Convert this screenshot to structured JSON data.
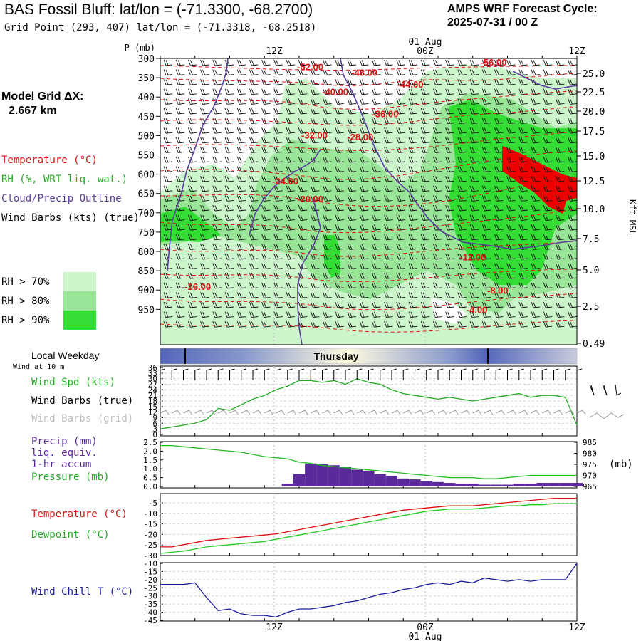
{
  "header": {
    "title": "BAS Fossil Bluff:  lat/lon = (-71.3300, -68.2700)",
    "subtitle": "Grid Point (293, 407) lat/lon = (-71.3318, -68.2518)",
    "cycle_label": "AMPS WRF Forecast Cycle:",
    "cycle_value": "2025-07-31 / 00  Z"
  },
  "model_grid": {
    "label": "Model Grid ΔX:",
    "value": "2.667 km"
  },
  "legend": {
    "temperature": "Temperature (°C)",
    "rh": "RH (%, WRT liq. wat.)",
    "cloud": "Cloud/Precip Outline",
    "wind": "Wind Barbs (kts) (true)",
    "rh70": "RH > 70%",
    "rh80": "RH > 80%",
    "rh90": "RH > 90%"
  },
  "colors": {
    "temperature": "#dd1111",
    "rh": "#22aa22",
    "cloud": "#5a3d9e",
    "rh70": "#ccf5cc",
    "rh80": "#99e699",
    "rh90": "#33dd33",
    "precip": "#5a2a9a",
    "pressure": "#22bb22",
    "dewpoint": "#22cc22",
    "windchill": "#1a1aa0",
    "red_area": "#ee0000"
  },
  "time_axis": {
    "top_labels": [
      "12Z",
      "00Z",
      "12Z"
    ],
    "date_label": "01 Aug",
    "bottom_labels": [
      "12Z",
      "00Z",
      "12Z"
    ],
    "weekday": "Thursday"
  },
  "panel_labels": {
    "pressure_axis": "P (mb)",
    "height_axis": "Kft MSL",
    "local_weekday": "Local Weekday",
    "wind_at_10m": "Wind at 10 m",
    "wind_spd": "Wind Spd (kts)",
    "wind_barbs_true": "Wind Barbs (true)",
    "wind_barbs_grid": "Wind Barbs (grid)",
    "precip_1": "Precip (mm)",
    "precip_2": "liq. equiv.",
    "precip_3": "1-hr accum",
    "pressure": "Pressure (mb)",
    "pressure_unit": "(mb)",
    "temperature": "Temperature (°C)",
    "dewpoint": "Dewpoint (°C)",
    "windchill": "Wind Chill T (°C)"
  },
  "chart_data": [
    {
      "type": "heatmap",
      "panel": "upper-air cross section",
      "y_pressure_ticks": [
        "300",
        "350",
        "400",
        "450",
        "500",
        "550",
        "600",
        "650",
        "700",
        "750",
        "800",
        "850",
        "900",
        "950"
      ],
      "y_height_ticks": [
        "25.0",
        "22.5",
        "20.0",
        "17.5",
        "15.0",
        "12.5",
        "10.0",
        "7.5",
        "5.0",
        "2.5",
        "0.49"
      ],
      "temperature_contour_labels": [
        {
          "label": "-52.00",
          "x": 0.36,
          "p": 330
        },
        {
          "label": "-48.00",
          "x": 0.49,
          "p": 345
        },
        {
          "label": "-56.00",
          "x": 0.8,
          "p": 318
        },
        {
          "label": "-44.00",
          "x": 0.6,
          "p": 376
        },
        {
          "label": "-40.00",
          "x": 0.42,
          "p": 395
        },
        {
          "label": "-36.00",
          "x": 0.54,
          "p": 452
        },
        {
          "label": "-32.00",
          "x": 0.37,
          "p": 508
        },
        {
          "label": "-28.00",
          "x": 0.48,
          "p": 512
        },
        {
          "label": "-24.00",
          "x": 0.3,
          "p": 627
        },
        {
          "label": "-20.00",
          "x": 0.36,
          "p": 673
        },
        {
          "label": "-12.00",
          "x": 0.75,
          "p": 823
        },
        {
          "label": "-16.00",
          "x": 0.09,
          "p": 900
        },
        {
          "label": "-8.00",
          "x": 0.81,
          "p": 910
        },
        {
          "label": "-4.00",
          "x": 0.76,
          "p": 960
        }
      ]
    },
    {
      "type": "line",
      "panel": "10 m wind speed",
      "y_ticks": [
        "36",
        "33",
        "30",
        "27",
        "24",
        "21",
        "18",
        "15",
        "12",
        "9",
        "6",
        "3",
        "0"
      ],
      "ylim": [
        0,
        36
      ],
      "x": [
        0,
        1,
        2,
        3,
        4,
        5,
        6,
        7,
        8,
        9,
        10,
        11,
        12,
        13,
        14,
        15,
        16,
        17,
        18,
        19,
        20,
        21,
        22,
        23,
        24,
        25,
        26,
        27,
        28,
        29,
        30,
        31,
        32,
        33,
        34,
        35,
        36
      ],
      "series": [
        {
          "name": "Wind Spd (kts)",
          "values": [
            3,
            4,
            5,
            6,
            8,
            14,
            13,
            16,
            19,
            21,
            24,
            26,
            29,
            29,
            28,
            29,
            27,
            30,
            28,
            27,
            24,
            22,
            21,
            20,
            19,
            20,
            19,
            18,
            19,
            20,
            21,
            22,
            20,
            21,
            21,
            20,
            5
          ]
        }
      ]
    },
    {
      "type": "bar",
      "panel": "precipitation and surface pressure",
      "y_ticks_left": [
        "2.5",
        "2.0",
        "1.5",
        "1.0",
        "0.5",
        "0.0"
      ],
      "y_ticks_right": [
        "985",
        "980",
        "975",
        "970",
        "965"
      ],
      "x": [
        0,
        1,
        2,
        3,
        4,
        5,
        6,
        7,
        8,
        9,
        10,
        11,
        12,
        13,
        14,
        15,
        16,
        17,
        18,
        19,
        20,
        21,
        22,
        23,
        24,
        25,
        26,
        27,
        28,
        29,
        30,
        31,
        32,
        33,
        34,
        35,
        36
      ],
      "series": [
        {
          "name": "Precip (mm)",
          "values": [
            0,
            0,
            0,
            0,
            0,
            0,
            0,
            0,
            0,
            0,
            0,
            0.15,
            0.7,
            1.3,
            1.25,
            1.2,
            1.1,
            0.95,
            0.85,
            0.7,
            0.6,
            0.45,
            0.4,
            0.3,
            0.25,
            0.2,
            0.15,
            0.15,
            0.1,
            0.1,
            0.1,
            0.15,
            0.15,
            0.2,
            0.2,
            0.2,
            0.2
          ]
        },
        {
          "name": "Pressure (mb)",
          "values": [
            983.5,
            983.5,
            983,
            982.5,
            982,
            981.5,
            981,
            980.5,
            979.5,
            978.5,
            978,
            977.5,
            976,
            975.5,
            974.5,
            974,
            973.5,
            973,
            972.5,
            972,
            971.5,
            971,
            970.5,
            970,
            969.5,
            969,
            969,
            969,
            968.5,
            968.5,
            969,
            969.5,
            970,
            970,
            970,
            970,
            970
          ]
        }
      ]
    },
    {
      "type": "line",
      "panel": "temperature and dewpoint",
      "y_ticks": [
        "-5",
        "-10",
        "-15",
        "-20",
        "-25",
        "-30"
      ],
      "ylim": [
        -30,
        -2
      ],
      "x": [
        0,
        1,
        2,
        3,
        4,
        5,
        6,
        7,
        8,
        9,
        10,
        11,
        12,
        13,
        14,
        15,
        16,
        17,
        18,
        19,
        20,
        21,
        22,
        23,
        24,
        25,
        26,
        27,
        28,
        29,
        30,
        31,
        32,
        33,
        34,
        35,
        36
      ],
      "series": [
        {
          "name": "Temperature (°C)",
          "values": [
            -26,
            -26,
            -25,
            -24,
            -23,
            -22.5,
            -22,
            -21.5,
            -21,
            -20.5,
            -20,
            -19,
            -18,
            -17,
            -16,
            -15,
            -14,
            -13,
            -12,
            -11,
            -10,
            -9,
            -8.5,
            -8,
            -7.5,
            -7,
            -7,
            -7,
            -6.5,
            -6,
            -5.5,
            -5,
            -4.5,
            -4,
            -3.5,
            -3.5,
            -3.5
          ]
        },
        {
          "name": "Dewpoint (°C)",
          "values": [
            -29,
            -28.5,
            -28,
            -27,
            -26,
            -25.5,
            -25,
            -24.5,
            -24,
            -23.5,
            -22.5,
            -21.5,
            -20.5,
            -19.5,
            -18.5,
            -17.5,
            -16.5,
            -15.5,
            -14.5,
            -13.5,
            -12.5,
            -11.5,
            -10.5,
            -9.5,
            -9,
            -8.5,
            -8.5,
            -8.5,
            -8,
            -7.5,
            -7,
            -7,
            -6.5,
            -6.5,
            -6,
            -6,
            -6
          ]
        }
      ]
    },
    {
      "type": "line",
      "panel": "wind chill",
      "y_ticks": [
        "-10",
        "-15",
        "-20",
        "-25",
        "-30",
        "-35",
        "-40",
        "-45"
      ],
      "ylim": [
        -45,
        -10
      ],
      "x": [
        0,
        1,
        2,
        3,
        4,
        5,
        6,
        7,
        8,
        9,
        10,
        11,
        12,
        13,
        14,
        15,
        16,
        17,
        18,
        19,
        20,
        21,
        22,
        23,
        24,
        25,
        26,
        27,
        28,
        29,
        30,
        31,
        32,
        33,
        34,
        35,
        36
      ],
      "series": [
        {
          "name": "Wind Chill T (°C)",
          "values": [
            -23,
            -23,
            -23,
            -22,
            -31,
            -39,
            -38,
            -41,
            -42,
            -42,
            -43,
            -40,
            -38,
            -38,
            -37,
            -36,
            -34,
            -33,
            -31,
            -29,
            -28,
            -26,
            -25,
            -23,
            -22,
            -23,
            -21,
            -22,
            -19,
            -20,
            -21,
            -20,
            -21,
            -20,
            -20,
            -20,
            -10
          ]
        }
      ]
    }
  ]
}
